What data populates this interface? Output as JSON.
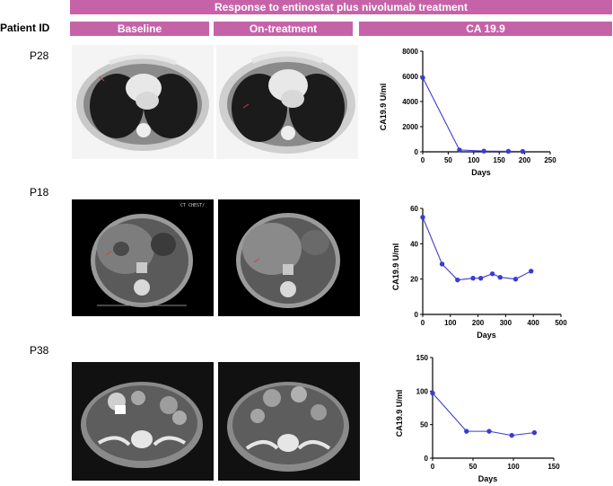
{
  "header": {
    "title": "Response to entinostat plus nivolumab treatment",
    "columns": {
      "patient_id": "Patient ID",
      "baseline": "Baseline",
      "on_treatment": "On-treatment",
      "marker": "CA 19.9"
    }
  },
  "patients": [
    {
      "id": "P28"
    },
    {
      "id": "P18",
      "scan_caption": "CT CHEST/"
    },
    {
      "id": "P38"
    }
  ],
  "colors": {
    "header_bar": "#c663a8",
    "series": "#3b3bd6"
  },
  "chart_data": [
    {
      "type": "line",
      "patient": "P28",
      "xlabel": "Days",
      "ylabel": "CA19.9 U/ml",
      "xlim": [
        0,
        250
      ],
      "ylim": [
        0,
        8000
      ],
      "xticks": [
        0,
        50,
        100,
        150,
        200,
        250
      ],
      "yticks": [
        0,
        2000,
        4000,
        6000,
        8000
      ],
      "x": [
        0,
        72,
        120,
        168,
        196
      ],
      "y": [
        5900,
        150,
        60,
        40,
        30
      ]
    },
    {
      "type": "line",
      "patient": "P18",
      "xlabel": "Days",
      "ylabel": "CA19.9 U/ml",
      "xlim": [
        0,
        500
      ],
      "ylim": [
        0,
        60
      ],
      "xticks": [
        0,
        100,
        200,
        300,
        400,
        500
      ],
      "yticks": [
        0,
        20,
        40,
        60
      ],
      "x": [
        0,
        70,
        126,
        182,
        210,
        252,
        280,
        336,
        392
      ],
      "y": [
        55,
        28.5,
        19.5,
        20.5,
        20.5,
        23,
        21,
        20,
        24.5
      ]
    },
    {
      "type": "line",
      "patient": "P38",
      "xlabel": "Days",
      "ylabel": "CA19.9 U/ml",
      "xlim": [
        0,
        150
      ],
      "ylim": [
        0,
        150
      ],
      "xticks": [
        0,
        50,
        100,
        150
      ],
      "yticks": [
        0,
        50,
        100,
        150
      ],
      "x": [
        0,
        42,
        70,
        98,
        126
      ],
      "y": [
        97,
        40,
        40,
        34,
        38
      ]
    }
  ]
}
